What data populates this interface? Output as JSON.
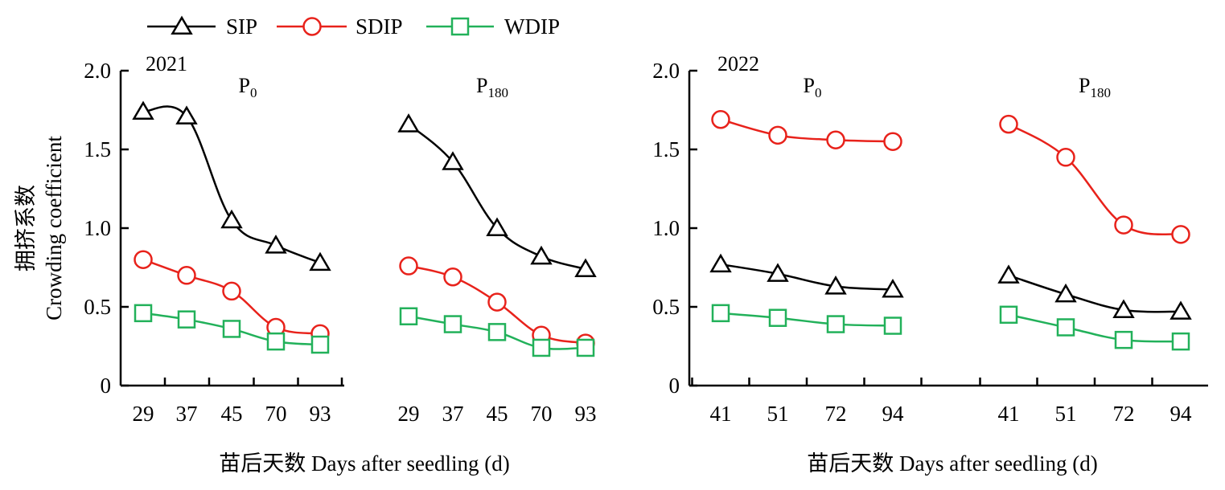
{
  "legend": [
    {
      "label": "SIP",
      "marker": "triangle",
      "color": "#000000"
    },
    {
      "label": "SDIP",
      "marker": "circle",
      "color": "#e8221b"
    },
    {
      "label": "WDIP",
      "marker": "square",
      "color": "#22b15a"
    }
  ],
  "y_axis_title_cn": "拥挤系数",
  "y_axis_title_en": "Crowding coefficient",
  "chart_data": [
    {
      "type": "line",
      "year": "2021",
      "xlabel": "苗后天数 Days after seedling (d)",
      "ylim": [
        0,
        2.0
      ],
      "yticks": [
        "0",
        "0.5",
        "1.0",
        "1.5",
        "2.0"
      ],
      "panels": [
        {
          "title": "P",
          "subscript": "0",
          "categories": [
            "29",
            "37",
            "45",
            "70",
            "93"
          ],
          "series": [
            {
              "name": "SIP",
              "values": [
                1.74,
                1.71,
                1.05,
                0.89,
                0.78
              ]
            },
            {
              "name": "SDIP",
              "values": [
                0.8,
                0.7,
                0.6,
                0.37,
                0.33
              ]
            },
            {
              "name": "WDIP",
              "values": [
                0.46,
                0.42,
                0.36,
                0.28,
                0.26
              ]
            }
          ]
        },
        {
          "title": "P",
          "subscript": "180",
          "categories": [
            "29",
            "37",
            "45",
            "70",
            "93"
          ],
          "series": [
            {
              "name": "SIP",
              "values": [
                1.66,
                1.42,
                1.0,
                0.82,
                0.74
              ]
            },
            {
              "name": "SDIP",
              "values": [
                0.76,
                0.69,
                0.53,
                0.32,
                0.27
              ]
            },
            {
              "name": "WDIP",
              "values": [
                0.44,
                0.39,
                0.34,
                0.24,
                0.24
              ]
            }
          ]
        }
      ]
    },
    {
      "type": "line",
      "year": "2022",
      "xlabel": "苗后天数 Days after seedling (d)",
      "ylim": [
        0,
        2.0
      ],
      "yticks": [
        "0",
        "0.5",
        "1.0",
        "1.5",
        "2.0"
      ],
      "panels": [
        {
          "title": "P",
          "subscript": "0",
          "categories": [
            "41",
            "51",
            "72",
            "94"
          ],
          "series": [
            {
              "name": "SIP",
              "values": [
                0.77,
                0.71,
                0.63,
                0.61
              ]
            },
            {
              "name": "SDIP",
              "values": [
                1.69,
                1.59,
                1.56,
                1.55
              ]
            },
            {
              "name": "WDIP",
              "values": [
                0.46,
                0.43,
                0.39,
                0.38
              ]
            }
          ]
        },
        {
          "title": "P",
          "subscript": "180",
          "categories": [
            "41",
            "51",
            "72",
            "94"
          ],
          "series": [
            {
              "name": "SIP",
              "values": [
                0.7,
                0.58,
                0.48,
                0.47
              ]
            },
            {
              "name": "SDIP",
              "values": [
                1.66,
                1.45,
                1.02,
                0.96
              ]
            },
            {
              "name": "WDIP",
              "values": [
                0.45,
                0.37,
                0.29,
                0.28
              ]
            }
          ]
        }
      ]
    }
  ]
}
